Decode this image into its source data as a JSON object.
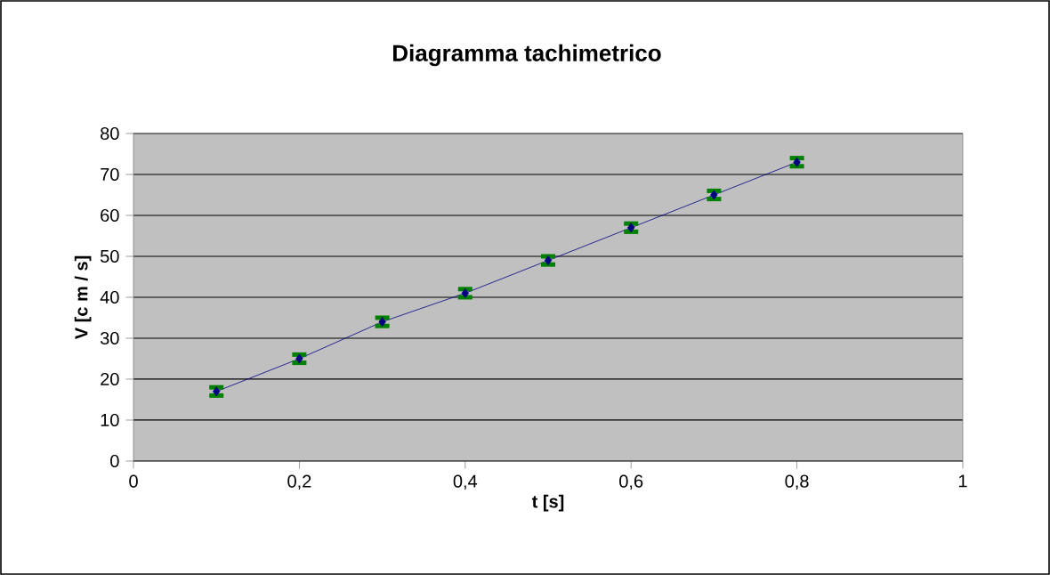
{
  "chart_data": {
    "type": "line",
    "title": "Diagramma tachimetrico",
    "xlabel": "t [s]",
    "ylabel": "V [c m / s]",
    "x": [
      0.1,
      0.2,
      0.3,
      0.4,
      0.5,
      0.6,
      0.7,
      0.8
    ],
    "series": [
      {
        "color": "#000080",
        "values": [
          17,
          25,
          34,
          41,
          49,
          57,
          65,
          73
        ],
        "errors": [
          1,
          1,
          1,
          1,
          1,
          1,
          1,
          1
        ]
      }
    ],
    "xlim": [
      0,
      1
    ],
    "ylim": [
      0,
      80
    ],
    "xticks": [
      0,
      {
        "value": 0.2,
        "label": "0,2"
      },
      {
        "value": 0.4,
        "label": "0,4"
      },
      {
        "value": 0.6,
        "label": "0,6"
      },
      {
        "value": 0.8,
        "label": "0,8"
      },
      1
    ],
    "yticks": [
      0,
      10,
      20,
      30,
      40,
      50,
      60,
      70,
      80
    ],
    "grid": "y",
    "marker": "diamond",
    "line_style": "solid"
  }
}
